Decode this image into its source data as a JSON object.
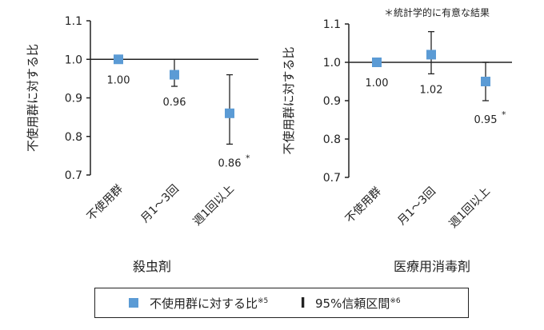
{
  "note": "＊統計学的に有意な結果",
  "colors": {
    "marker": "#5b9bd5",
    "axis": "#222222"
  },
  "legend": {
    "marker_label": "不使用群に対する比",
    "marker_sup": "※5",
    "ci_label": "95%信頼区間",
    "ci_sup": "※6",
    "ci_icon": "error-bar-icon"
  },
  "chart_data": [
    {
      "type": "scatter",
      "title": "殺虫剤",
      "ylabel": "不使用群に対する比",
      "ylim": [
        0.7,
        1.1
      ],
      "yticks": [
        "0.7",
        "0.8",
        "0.9",
        "1.0",
        "1.1"
      ],
      "reference_line": 1.0,
      "categories": [
        "不使用群",
        "月1～3回",
        "週1回以上"
      ],
      "values": [
        1.0,
        0.96,
        0.86
      ],
      "ci_lower": [
        null,
        0.93,
        0.78
      ],
      "ci_upper": [
        null,
        1.0,
        0.96
      ],
      "data_labels": [
        "1.00",
        "0.96",
        "0.86"
      ],
      "significant": [
        false,
        false,
        true
      ]
    },
    {
      "type": "scatter",
      "title": "医療用消毒剤",
      "ylabel": "不使用群に対する比",
      "ylim": [
        0.7,
        1.1
      ],
      "yticks": [
        "0.7",
        "0.8",
        "0.9",
        "1.0",
        "1.1"
      ],
      "reference_line": 1.0,
      "categories": [
        "不使用群",
        "月1～3回",
        "週1回以上"
      ],
      "values": [
        1.0,
        1.02,
        0.95
      ],
      "ci_lower": [
        null,
        0.97,
        0.9
      ],
      "ci_upper": [
        null,
        1.08,
        1.0
      ],
      "data_labels": [
        "1.00",
        "1.02",
        "0.95"
      ],
      "significant": [
        false,
        false,
        true
      ]
    }
  ]
}
